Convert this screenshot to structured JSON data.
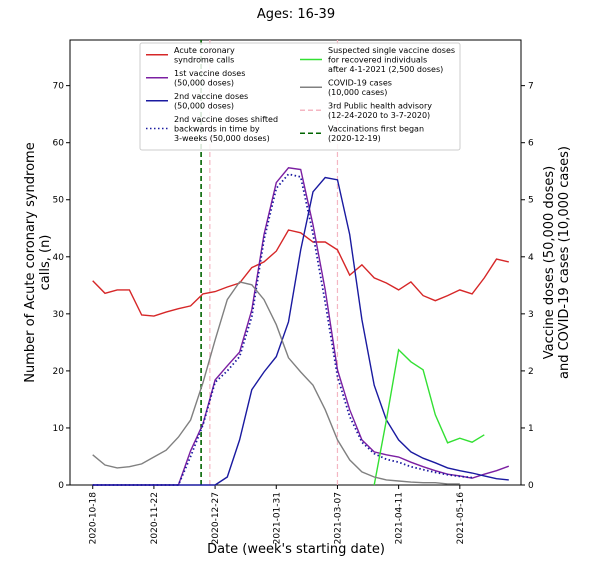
{
  "chart_data": {
    "type": "line",
    "title": "Ages: 16-39",
    "xlabel": "Date (week's starting date)",
    "ylabel": "Number of Acute coronary syndrome\ncalls, (n)",
    "y2label": "Vaccine doses (50,000 doses)\nand COVID-19 cases (10,000 cases)",
    "x": [
      "2020-10-18",
      "2020-10-25",
      "2020-11-01",
      "2020-11-08",
      "2020-11-15",
      "2020-11-22",
      "2020-11-29",
      "2020-12-06",
      "2020-12-13",
      "2020-12-20",
      "2020-12-27",
      "2021-01-03",
      "2021-01-10",
      "2021-01-17",
      "2021-01-24",
      "2021-01-31",
      "2021-02-07",
      "2021-02-14",
      "2021-02-21",
      "2021-02-28",
      "2021-03-07",
      "2021-03-14",
      "2021-03-21",
      "2021-03-28",
      "2021-04-04",
      "2021-04-11",
      "2021-04-18",
      "2021-04-25",
      "2021-05-02",
      "2021-05-09",
      "2021-05-16",
      "2021-05-23",
      "2021-05-30",
      "2021-06-06",
      "2021-06-13"
    ],
    "xlim": [
      "2020-10-05",
      "2021-06-20"
    ],
    "xticks": [
      "2020-10-18",
      "2020-11-22",
      "2020-12-27",
      "2021-01-31",
      "2021-03-07",
      "2021-04-11",
      "2021-05-16"
    ],
    "ylim": [
      0,
      78
    ],
    "yticks": [
      0,
      10,
      20,
      30,
      40,
      50,
      60,
      70
    ],
    "y2lim": [
      0,
      7.8
    ],
    "y2ticks": [
      0,
      1,
      2,
      3,
      4,
      5,
      6,
      7
    ],
    "series": [
      {
        "name": "Acute coronary\nsyndrome calls",
        "color": "#d62728",
        "axis": "y",
        "style": "solid",
        "values": [
          35.8,
          33.6,
          34.2,
          34.2,
          29.8,
          29.6,
          30.3,
          30.9,
          31.4,
          33.5,
          33.9,
          34.7,
          35.4,
          38.1,
          39.1,
          41,
          44.7,
          44.2,
          42.6,
          42.6,
          41.2,
          36.8,
          38.6,
          36.3,
          35.4,
          34.2,
          35.6,
          33.2,
          32.3,
          33.2,
          34.2,
          33.5,
          36.3,
          39.6,
          39.1
        ]
      },
      {
        "name": "1st vaccine doses\n(50,000 doses)",
        "color": "#7b1fa2",
        "axis": "y2",
        "style": "solid",
        "values": [
          0,
          0,
          0,
          0,
          0,
          0,
          0,
          0,
          0.6,
          1.07,
          1.84,
          2.09,
          2.33,
          3.07,
          4.39,
          5.3,
          5.56,
          5.53,
          4.56,
          3.42,
          2.02,
          1.32,
          0.79,
          0.58,
          0.53,
          0.49,
          0.4,
          0.32,
          0.25,
          0.19,
          0.16,
          0.12,
          0.19,
          0.25,
          0.33
        ]
      },
      {
        "name": "2nd vaccine doses\n(50,000 doses)",
        "color": "#1a1aa0",
        "axis": "y2",
        "style": "solid",
        "values": [
          0,
          0,
          0,
          0,
          0,
          0,
          0,
          0,
          0,
          0,
          0,
          0.14,
          0.79,
          1.67,
          1.98,
          2.25,
          2.86,
          4.12,
          5.14,
          5.39,
          5.35,
          4.39,
          2.9,
          1.75,
          1.14,
          0.79,
          0.58,
          0.47,
          0.39,
          0.3,
          0.25,
          0.21,
          0.16,
          0.11,
          0.09
        ]
      },
      {
        "name": "2nd vaccine doses shifted\nbackwards in time by\n3-weeks (50,000 doses)",
        "color": "#1a1aa0",
        "axis": "y2",
        "style": "dotted",
        "values": [
          0,
          0,
          0,
          0,
          0,
          0,
          0,
          0,
          0.5,
          1.05,
          1.8,
          2.0,
          2.25,
          2.95,
          4.3,
          5.2,
          5.45,
          5.4,
          4.4,
          3.2,
          1.9,
          1.2,
          0.75,
          0.55,
          0.45,
          0.4,
          0.32,
          0.27,
          0.22,
          0.18,
          0.15,
          0.13,
          null,
          null,
          null
        ]
      },
      {
        "name": "Suspected single vaccine doses\nfor recovered individuals\nafter 4-1-2021 (2,500 doses)",
        "color": "#33e033",
        "axis": "y2",
        "style": "solid",
        "values": [
          null,
          null,
          null,
          null,
          null,
          null,
          null,
          null,
          null,
          null,
          null,
          null,
          null,
          null,
          null,
          null,
          null,
          null,
          null,
          null,
          null,
          null,
          null,
          0,
          1.14,
          2.37,
          2.16,
          2.02,
          1.23,
          0.74,
          0.82,
          0.75,
          0.88,
          null,
          null
        ]
      },
      {
        "name": "COVID-19 cases\n(10,000 cases)",
        "color": "#808080",
        "axis": "y2",
        "style": "solid",
        "values": [
          0.53,
          0.35,
          0.3,
          0.32,
          0.37,
          0.49,
          0.61,
          0.84,
          1.14,
          1.79,
          2.54,
          3.25,
          3.56,
          3.51,
          3.25,
          2.81,
          2.23,
          1.98,
          1.75,
          1.32,
          0.79,
          0.44,
          0.23,
          0.14,
          0.09,
          0.07,
          0.05,
          0.04,
          0.04,
          0.02,
          0.02,
          null,
          null,
          null,
          null
        ]
      }
    ],
    "vlines": [
      {
        "name": "3rd Public health advisory\n(12-24-2020 to 3-7-2020)",
        "color": "#f4b6c2",
        "style": "dashed",
        "x": [
          "2020-12-24",
          "2021-03-07"
        ]
      },
      {
        "name": "Vaccinations first began\n(2020-12-19)",
        "color": "#006400",
        "style": "dashed",
        "x": [
          "2020-12-19"
        ]
      }
    ]
  }
}
